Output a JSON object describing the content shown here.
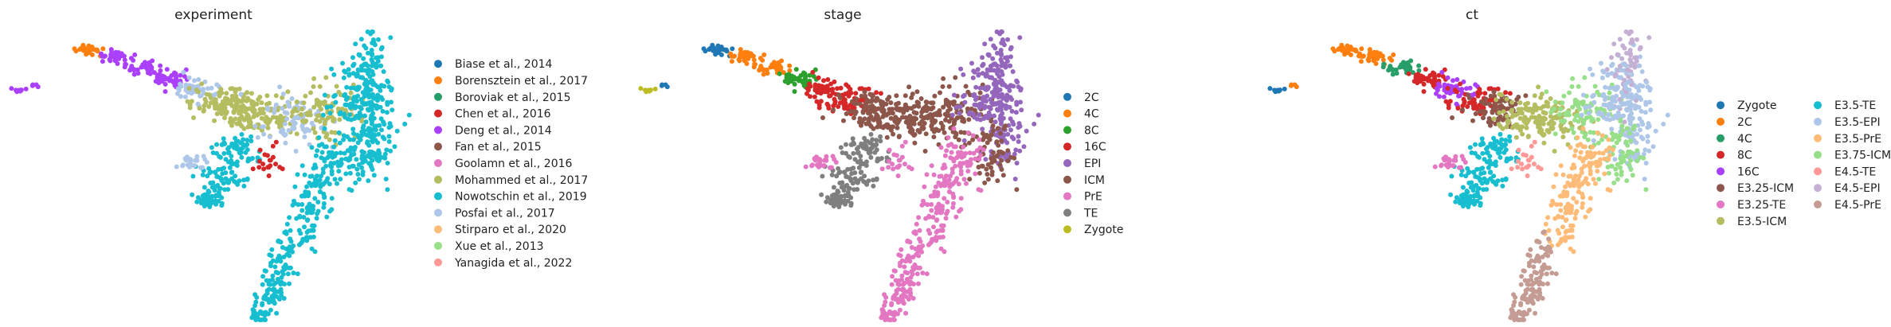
{
  "chart_data": [
    {
      "type": "scatter",
      "title": "experiment",
      "xlabel": "",
      "ylabel": "",
      "grid": false,
      "legend_placement": "right",
      "legend_columns": 1,
      "legend": [
        {
          "label": "Biase et al., 2014",
          "color": "#1f77b4"
        },
        {
          "label": "Borensztein et al., 2017",
          "color": "#ff7f0e"
        },
        {
          "label": "Boroviak et al., 2015",
          "color": "#279e68"
        },
        {
          "label": "Chen et al., 2016",
          "color": "#d62728"
        },
        {
          "label": "Deng et al., 2014",
          "color": "#aa40fc"
        },
        {
          "label": "Fan et al., 2015",
          "color": "#8c564b"
        },
        {
          "label": "Goolamn et al., 2016",
          "color": "#e377c2"
        },
        {
          "label": "Mohammed et al., 2017",
          "color": "#b5bd61"
        },
        {
          "label": "Nowotschin et al., 2019",
          "color": "#17becf"
        },
        {
          "label": "Posfai et al., 2017",
          "color": "#aec7e8"
        },
        {
          "label": "Stirparo et al., 2020",
          "color": "#ffbb78"
        },
        {
          "label": "Xue et al., 2013",
          "color": "#98df8a"
        },
        {
          "label": "Yanagida et al., 2022",
          "color": "#ff9896"
        }
      ]
    },
    {
      "type": "scatter",
      "title": "stage",
      "xlabel": "",
      "ylabel": "",
      "grid": false,
      "legend_placement": "right",
      "legend_columns": 1,
      "legend": [
        {
          "label": "2C",
          "color": "#1f77b4"
        },
        {
          "label": "4C",
          "color": "#ff7f0e"
        },
        {
          "label": "8C",
          "color": "#2ca02c"
        },
        {
          "label": "16C",
          "color": "#d62728"
        },
        {
          "label": "EPI",
          "color": "#9467bd"
        },
        {
          "label": "ICM",
          "color": "#8c564b"
        },
        {
          "label": "PrE",
          "color": "#e377c2"
        },
        {
          "label": "TE",
          "color": "#7f7f7f"
        },
        {
          "label": "Zygote",
          "color": "#bcbd22"
        }
      ]
    },
    {
      "type": "scatter",
      "title": "ct",
      "xlabel": "",
      "ylabel": "",
      "grid": false,
      "legend_placement": "right",
      "legend_columns": 2,
      "legend": [
        {
          "label": "Zygote",
          "color": "#1f77b4"
        },
        {
          "label": "2C",
          "color": "#ff7f0e"
        },
        {
          "label": "4C",
          "color": "#279e68"
        },
        {
          "label": "8C",
          "color": "#d62728"
        },
        {
          "label": "16C",
          "color": "#aa40fc"
        },
        {
          "label": "E3.25-ICM",
          "color": "#8c564b"
        },
        {
          "label": "E3.25-TE",
          "color": "#e377c2"
        },
        {
          "label": "E3.5-ICM",
          "color": "#b5bd61"
        },
        {
          "label": "E3.5-TE",
          "color": "#17becf"
        },
        {
          "label": "E3.5-EPI",
          "color": "#aec7e8"
        },
        {
          "label": "E3.5-PrE",
          "color": "#ffbb78"
        },
        {
          "label": "E3.75-ICM",
          "color": "#98df8a"
        },
        {
          "label": "E4.5-TE",
          "color": "#ff9896"
        },
        {
          "label": "E4.5-EPI",
          "color": "#c5b0d5"
        },
        {
          "label": "E4.5-PrE",
          "color": "#c49c94"
        }
      ]
    }
  ]
}
